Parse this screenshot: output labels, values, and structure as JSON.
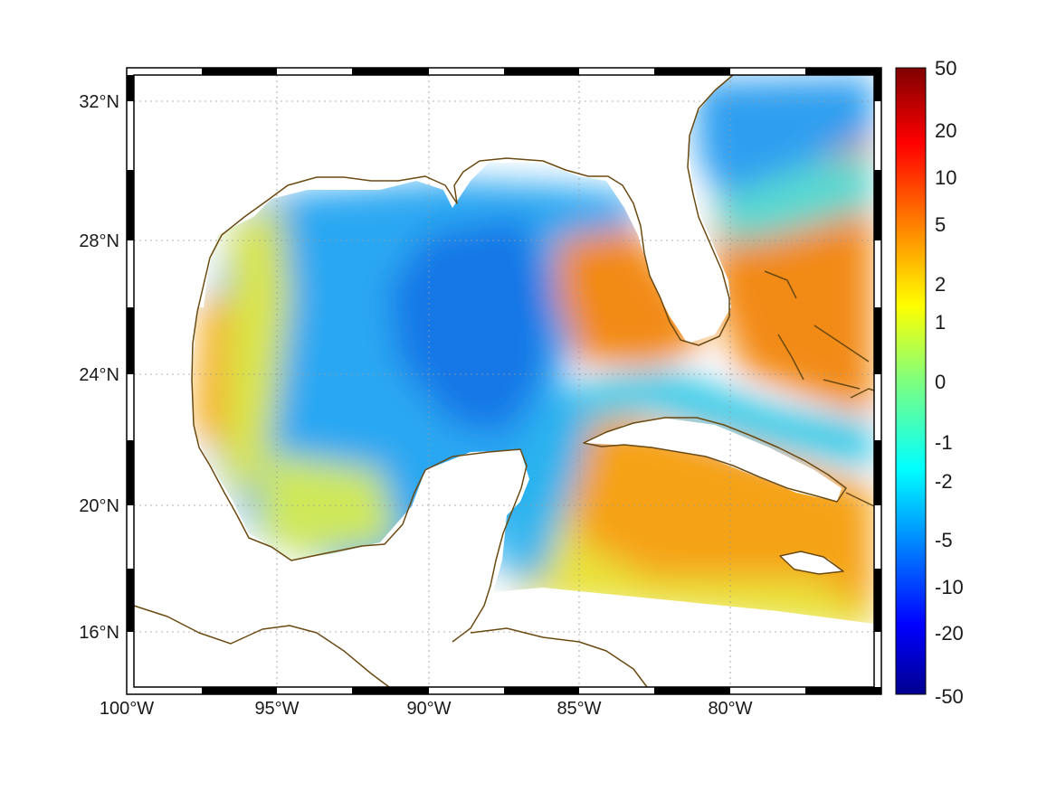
{
  "map": {
    "lon_range": [
      -100,
      -75
    ],
    "lat_range": [
      14.2,
      33
    ],
    "projection": "mercator",
    "grid": true,
    "lon_ticks": [
      {
        "lon": -100,
        "label": "100°W"
      },
      {
        "lon": -95,
        "label": "95°W"
      },
      {
        "lon": -90,
        "label": "90°W"
      },
      {
        "lon": -85,
        "label": "85°W"
      },
      {
        "lon": -80,
        "label": "80°W"
      }
    ],
    "lat_ticks": [
      {
        "lat": 32,
        "label": "32°N"
      },
      {
        "lat": 28,
        "label": "28°N"
      },
      {
        "lat": 24,
        "label": "24°N"
      },
      {
        "lat": 20,
        "label": "20°N"
      },
      {
        "lat": 16,
        "label": "16°N"
      }
    ],
    "frame_style": "alternating black-white border",
    "coastline_color": "#6b4a12",
    "field_description_values": [
      {
        "region": "western Gulf shelf (Texas/Mexico coast)",
        "value": 3
      },
      {
        "region": "central Gulf",
        "value": -3
      },
      {
        "region": "eastern Gulf / Loop Current",
        "value": -6
      },
      {
        "region": "west Florida shelf",
        "value": 5
      },
      {
        "region": "Atlantic east of Florida",
        "value": 6
      },
      {
        "region": "off Georgia/Carolina coast",
        "value": -3
      },
      {
        "region": "Caribbean south of Cuba",
        "value": 4
      }
    ]
  },
  "colorbar": {
    "ticks": [
      "50",
      "20",
      "10",
      "5",
      "2",
      "1",
      "0",
      "-1",
      "-2",
      "-5",
      "-10",
      "-20",
      "-50"
    ],
    "values": [
      50,
      20,
      10,
      5,
      2,
      1,
      0,
      -1,
      -2,
      -5,
      -10,
      -20,
      -50
    ],
    "colormap": "jet",
    "scale": "symmetric-log"
  }
}
